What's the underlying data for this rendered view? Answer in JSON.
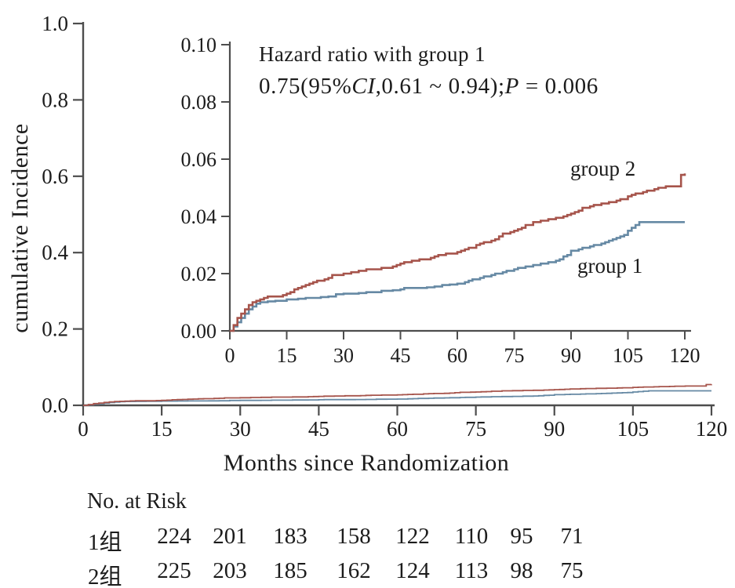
{
  "main_chart": {
    "y_label": "cumulative Incidence",
    "x_label": "Months since Randomization",
    "x_tick_labels": [
      "0",
      "15",
      "30",
      "45",
      "60",
      "75",
      "90",
      "105",
      "120"
    ],
    "y_tick_labels": [
      "0.0",
      "0.2",
      "0.4",
      "0.6",
      "0.8",
      "1.0"
    ]
  },
  "inset_chart": {
    "x_tick_labels": [
      "0",
      "15",
      "30",
      "45",
      "60",
      "75",
      "90",
      "105",
      "120"
    ],
    "y_tick_labels": [
      "0.00",
      "0.02",
      "0.04",
      "0.06",
      "0.08",
      "0.10"
    ],
    "annotation_line1": "Hazard ratio with group 1",
    "annotation_line2": {
      "prefix": "0.75(95%",
      "ci": "CI",
      "mid": ",0.61 ~ 0.94);",
      "p": "P",
      "suffix": " = 0.006"
    },
    "group1_label": "group 1",
    "group2_label": "group 2"
  },
  "risk_table": {
    "title": "No. at Risk",
    "rows": [
      {
        "label": "1组",
        "values": [
          "224",
          "201",
          "183",
          "158",
          "122",
          "110",
          "95",
          "71"
        ]
      },
      {
        "label": "2组",
        "values": [
          "225",
          "203",
          "185",
          "162",
          "124",
          "113",
          "98",
          "75"
        ]
      }
    ]
  },
  "colors": {
    "axis": "#4d4d4d",
    "text": "#1c1c1c",
    "group1": "#6689a4",
    "group2": "#a6544b"
  },
  "chart_data": {
    "type": "line",
    "subtype": "step-function cumulative incidence (Kaplan-Meier style) with zoomed inset",
    "xlabel": "Months since Randomization",
    "ylabel": "cumulative Incidence",
    "annotation": "Hazard ratio with group 1 0.75(95%CI,0.61 ~ 0.94);P = 0.006",
    "main_axis": {
      "xlim": [
        0,
        120
      ],
      "ylim": [
        0,
        1.0
      ],
      "x_ticks": [
        0,
        15,
        30,
        45,
        60,
        75,
        90,
        105,
        120
      ],
      "y_ticks": [
        0,
        0.2,
        0.4,
        0.6,
        0.8,
        1.0
      ],
      "grid": false
    },
    "inset_axis": {
      "xlim": [
        0,
        120
      ],
      "ylim": [
        0,
        0.1
      ],
      "x_ticks": [
        0,
        15,
        30,
        45,
        60,
        75,
        90,
        105,
        120
      ],
      "y_ticks": [
        0,
        0.02,
        0.04,
        0.06,
        0.08,
        0.1
      ],
      "grid": false
    },
    "series": [
      {
        "name": "group 1",
        "color": "#6689a4",
        "points": [
          [
            0,
            0
          ],
          [
            1,
            0.0015
          ],
          [
            2,
            0.003
          ],
          [
            3,
            0.0045
          ],
          [
            4,
            0.006
          ],
          [
            5,
            0.0075
          ],
          [
            6,
            0.0085
          ],
          [
            7,
            0.0095
          ],
          [
            8,
            0.01
          ],
          [
            10,
            0.0103
          ],
          [
            12,
            0.0105
          ],
          [
            15,
            0.011
          ],
          [
            18,
            0.0112
          ],
          [
            20,
            0.0115
          ],
          [
            24,
            0.0118
          ],
          [
            26,
            0.012
          ],
          [
            28,
            0.0128
          ],
          [
            30,
            0.013
          ],
          [
            34,
            0.0132
          ],
          [
            36,
            0.0135
          ],
          [
            40,
            0.014
          ],
          [
            43,
            0.0142
          ],
          [
            45,
            0.0145
          ],
          [
            46,
            0.015
          ],
          [
            52,
            0.0152
          ],
          [
            54,
            0.0155
          ],
          [
            56,
            0.016
          ],
          [
            58,
            0.0162
          ],
          [
            60,
            0.0165
          ],
          [
            62,
            0.017
          ],
          [
            63,
            0.0175
          ],
          [
            64,
            0.018
          ],
          [
            66,
            0.0185
          ],
          [
            67,
            0.019
          ],
          [
            69,
            0.0195
          ],
          [
            70,
            0.02
          ],
          [
            72,
            0.0205
          ],
          [
            73,
            0.021
          ],
          [
            75,
            0.0215
          ],
          [
            76,
            0.022
          ],
          [
            78,
            0.0225
          ],
          [
            80,
            0.023
          ],
          [
            82,
            0.0235
          ],
          [
            84,
            0.024
          ],
          [
            86,
            0.0245
          ],
          [
            87,
            0.025
          ],
          [
            88,
            0.026
          ],
          [
            89,
            0.0265
          ],
          [
            90,
            0.028
          ],
          [
            92,
            0.0285
          ],
          [
            93,
            0.029
          ],
          [
            95,
            0.0295
          ],
          [
            96,
            0.03
          ],
          [
            98,
            0.0305
          ],
          [
            99,
            0.031
          ],
          [
            100,
            0.0315
          ],
          [
            101,
            0.032
          ],
          [
            102,
            0.0325
          ],
          [
            103,
            0.033
          ],
          [
            104,
            0.0335
          ],
          [
            105,
            0.035
          ],
          [
            106,
            0.036
          ],
          [
            107,
            0.037
          ],
          [
            108,
            0.038
          ],
          [
            120,
            0.038
          ]
        ]
      },
      {
        "name": "group 2",
        "color": "#a6544b",
        "points": [
          [
            0,
            0
          ],
          [
            1,
            0.002
          ],
          [
            2,
            0.0045
          ],
          [
            3,
            0.006
          ],
          [
            4,
            0.0075
          ],
          [
            5,
            0.009
          ],
          [
            6,
            0.01
          ],
          [
            7,
            0.0105
          ],
          [
            8,
            0.011
          ],
          [
            9,
            0.0115
          ],
          [
            10,
            0.012
          ],
          [
            14,
            0.0125
          ],
          [
            15,
            0.013
          ],
          [
            16,
            0.0135
          ],
          [
            17,
            0.0145
          ],
          [
            18,
            0.015
          ],
          [
            19,
            0.0155
          ],
          [
            20,
            0.016
          ],
          [
            21,
            0.0165
          ],
          [
            22,
            0.017
          ],
          [
            23,
            0.0175
          ],
          [
            25,
            0.018
          ],
          [
            26,
            0.0185
          ],
          [
            27,
            0.0195
          ],
          [
            30,
            0.02
          ],
          [
            32,
            0.0205
          ],
          [
            34,
            0.021
          ],
          [
            36,
            0.0215
          ],
          [
            40,
            0.022
          ],
          [
            43,
            0.0225
          ],
          [
            44,
            0.023
          ],
          [
            45,
            0.0235
          ],
          [
            46,
            0.024
          ],
          [
            48,
            0.0245
          ],
          [
            50,
            0.025
          ],
          [
            53,
            0.0255
          ],
          [
            54,
            0.026
          ],
          [
            55,
            0.0265
          ],
          [
            57,
            0.027
          ],
          [
            60,
            0.0275
          ],
          [
            61,
            0.028
          ],
          [
            62,
            0.0285
          ],
          [
            63,
            0.029
          ],
          [
            65,
            0.03
          ],
          [
            66,
            0.0305
          ],
          [
            67,
            0.031
          ],
          [
            69,
            0.0315
          ],
          [
            70,
            0.032
          ],
          [
            71,
            0.033
          ],
          [
            72,
            0.034
          ],
          [
            74,
            0.0345
          ],
          [
            75,
            0.035
          ],
          [
            76,
            0.0355
          ],
          [
            77,
            0.036
          ],
          [
            78,
            0.037
          ],
          [
            80,
            0.038
          ],
          [
            82,
            0.0385
          ],
          [
            84,
            0.039
          ],
          [
            86,
            0.0395
          ],
          [
            88,
            0.04
          ],
          [
            89,
            0.0405
          ],
          [
            90,
            0.041
          ],
          [
            91,
            0.0415
          ],
          [
            92,
            0.042
          ],
          [
            93,
            0.043
          ],
          [
            95,
            0.0435
          ],
          [
            96,
            0.044
          ],
          [
            98,
            0.0445
          ],
          [
            100,
            0.045
          ],
          [
            102,
            0.0455
          ],
          [
            103,
            0.046
          ],
          [
            105,
            0.047
          ],
          [
            106,
            0.0475
          ],
          [
            107,
            0.048
          ],
          [
            109,
            0.0485
          ],
          [
            110,
            0.049
          ],
          [
            112,
            0.0495
          ],
          [
            113,
            0.05
          ],
          [
            115,
            0.0505
          ],
          [
            118,
            0.0505
          ],
          [
            119,
            0.0545
          ],
          [
            120,
            0.055
          ]
        ]
      }
    ],
    "no_at_risk": {
      "columns_note": "counts shown left to right under plot",
      "group 1 (1组)": [
        224,
        201,
        183,
        158,
        122,
        110,
        95,
        71
      ],
      "group 2 (2组)": [
        225,
        203,
        185,
        162,
        124,
        113,
        98,
        75
      ]
    },
    "legend_position": "curve-end labels inside inset"
  }
}
